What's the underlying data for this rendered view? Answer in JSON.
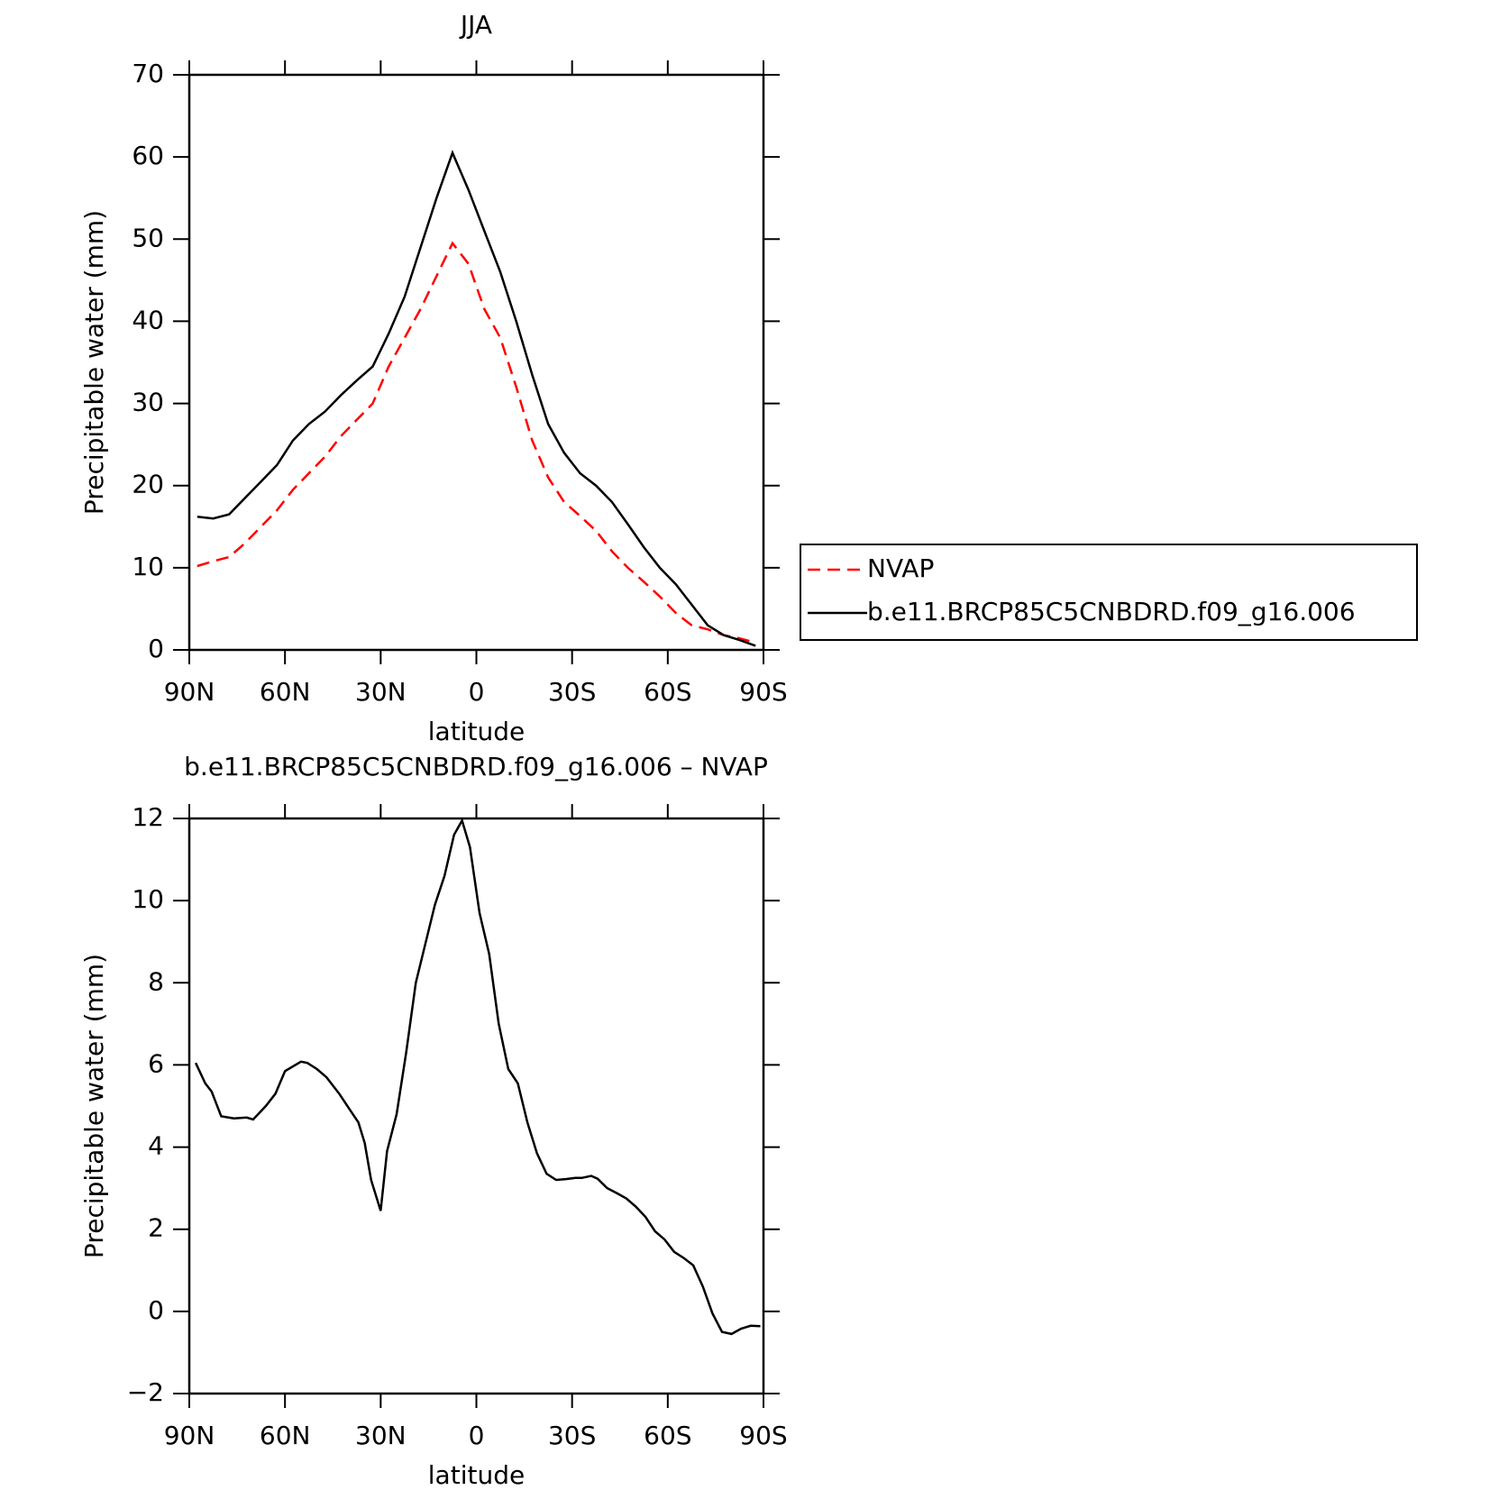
{
  "chart_data": [
    {
      "type": "line",
      "title": "JJA",
      "xlabel": "latitude",
      "ylabel": "Precipitable water (mm)",
      "x": [
        87.5,
        82.5,
        77.5,
        72.5,
        67.5,
        62.5,
        57.5,
        52.5,
        47.5,
        42.5,
        37.5,
        32.5,
        27.5,
        22.5,
        17.5,
        12.5,
        7.5,
        2.5,
        -2.5,
        -7.5,
        -12.5,
        -17.5,
        -22.5,
        -27.5,
        -32.5,
        -37.5,
        -42.5,
        -47.5,
        -52.5,
        -57.5,
        -62.5,
        -67.5,
        -72.5,
        -77.5,
        -82.5,
        -87.5
      ],
      "series": [
        {
          "name": "NVAP",
          "color": "#ff0000",
          "dash": true,
          "values": [
            10.2,
            10.8,
            11.3,
            13,
            15,
            17,
            19.5,
            21.5,
            23.5,
            26,
            28,
            30,
            34.5,
            38,
            41.5,
            45.5,
            49.5,
            47,
            41.5,
            38,
            32,
            25.5,
            21,
            18,
            16.3,
            14.5,
            12,
            10,
            8.3,
            6.5,
            4.5,
            3,
            2.5,
            1.8,
            1.4,
            0.9
          ]
        },
        {
          "name": "b.e11.BRCP85C5CNBDRD.f09_g16.006",
          "color": "#000000",
          "dash": false,
          "values": [
            16.2,
            16.0,
            16.5,
            18.5,
            20.5,
            22.5,
            25.5,
            27.5,
            29,
            31,
            32.8,
            34.5,
            38.5,
            43,
            49,
            55,
            60.5,
            56,
            51,
            46,
            40,
            33.5,
            27.5,
            24,
            21.5,
            20,
            18,
            15.3,
            12.5,
            10,
            8,
            5.5,
            3,
            1.8,
            1.2,
            0.5
          ]
        }
      ],
      "xlim": [
        90,
        -90
      ],
      "xticks": [
        {
          "value": 90,
          "label": "90N"
        },
        {
          "value": 60,
          "label": "60N"
        },
        {
          "value": 30,
          "label": "30N"
        },
        0,
        {
          "value": -30,
          "label": "30S"
        },
        {
          "value": -60,
          "label": "60S"
        },
        {
          "value": -90,
          "label": "90S"
        }
      ],
      "ylim": [
        0,
        70
      ],
      "yticks": [
        0,
        10,
        20,
        30,
        40,
        50,
        60,
        70
      ],
      "legend": "right"
    },
    {
      "type": "line",
      "title": "b.e11.BRCP85C5CNBDRD.f09_g16.006 – NVAP",
      "xlabel": "latitude",
      "ylabel": "Precipitable water (mm)",
      "x": [
        88,
        85,
        83,
        80,
        76,
        72,
        70,
        66,
        63,
        60,
        55,
        53,
        50,
        47,
        43,
        40,
        37,
        35,
        33,
        30,
        28,
        25,
        22,
        19,
        16,
        13,
        10,
        7,
        4.5,
        2,
        -1,
        -4,
        -7,
        -10,
        -13,
        -16,
        -19,
        -22,
        -25,
        -28,
        -31,
        -33,
        -36,
        -38,
        -41,
        -44,
        -47,
        -50,
        -53,
        -56,
        -59,
        -62,
        -65,
        -68,
        -71,
        -74,
        -77,
        -80,
        -83,
        -86,
        -89
      ],
      "series": [
        {
          "color": "#000000",
          "dash": false,
          "values": [
            6.05,
            5.55,
            5.35,
            4.75,
            4.7,
            4.72,
            4.67,
            5.0,
            5.3,
            5.85,
            6.08,
            6.05,
            5.9,
            5.7,
            5.3,
            4.95,
            4.6,
            4.1,
            3.2,
            2.45,
            3.9,
            4.8,
            6.3,
            8.0,
            8.95,
            9.9,
            10.6,
            11.6,
            11.95,
            11.3,
            9.7,
            8.7,
            7.0,
            5.9,
            5.55,
            4.6,
            3.85,
            3.35,
            3.2,
            3.22,
            3.25,
            3.25,
            3.3,
            3.23,
            3.0,
            2.88,
            2.75,
            2.55,
            2.3,
            1.95,
            1.75,
            1.45,
            1.3,
            1.12,
            0.6,
            -0.05,
            -0.5,
            -0.55,
            -0.42,
            -0.35,
            -0.36
          ]
        }
      ],
      "xlim": [
        90,
        -90
      ],
      "xticks": [
        {
          "value": 90,
          "label": "90N"
        },
        {
          "value": 60,
          "label": "60N"
        },
        {
          "value": 30,
          "label": "30N"
        },
        0,
        {
          "value": -30,
          "label": "30S"
        },
        {
          "value": -60,
          "label": "60S"
        },
        {
          "value": -90,
          "label": "90S"
        }
      ],
      "ylim": [
        -2,
        12
      ],
      "yticks": [
        {
          "value": -2,
          "label": "−2"
        },
        0,
        2,
        4,
        6,
        8,
        10,
        12
      ]
    }
  ]
}
